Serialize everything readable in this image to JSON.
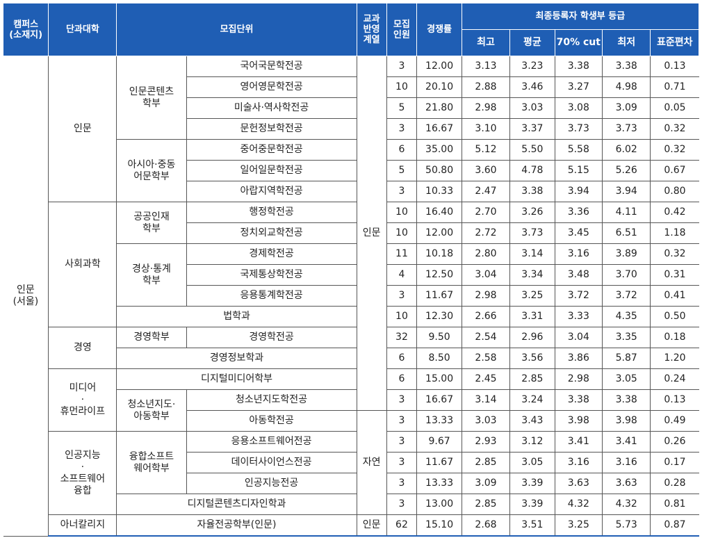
{
  "headers": {
    "campus": "캠퍼스\n(소재지)",
    "college": "단과대학",
    "unit": "모집단위",
    "track": "교과\n반영\n계열",
    "quota": "모집\n인원",
    "competition": "경쟁률",
    "grades": "최종등록자 학생부 등급",
    "best": "최고",
    "avg": "평균",
    "cut70": "70% cut",
    "worst": "최저",
    "sd": "표준편차"
  },
  "campus_label": "인문\n(서울)",
  "colleges": {
    "humanities": "인문",
    "social": "사회과학",
    "business": "경영",
    "media": "미디어\n·\n휴먼라이프",
    "ai": "인공지능\n·\n소프트웨어\n융합",
    "honors": "아너칼리지"
  },
  "divisions": {
    "hc": "인문콘텐츠\n학부",
    "asia": "아시아·중동\n어문학부",
    "public": "공공인재\n학부",
    "econ": "경상·통계\n학부",
    "bizdiv": "경영학부",
    "youth": "청소년지도·\n아동학부",
    "sw": "융합소프트\n웨어학부"
  },
  "tracks": {
    "humanities": "인문",
    "science": "자연",
    "honors": "인문"
  },
  "rows": [
    {
      "unit": "국어국문학전공",
      "quota": "3",
      "comp": "12.00",
      "best": "3.13",
      "avg": "3.23",
      "cut": "3.38",
      "worst": "3.38",
      "sd": "0.13"
    },
    {
      "unit": "영어영문학전공",
      "quota": "10",
      "comp": "20.10",
      "best": "2.88",
      "avg": "3.46",
      "cut": "3.27",
      "worst": "4.98",
      "sd": "0.71"
    },
    {
      "unit": "미술사·역사학전공",
      "quota": "5",
      "comp": "21.80",
      "best": "2.98",
      "avg": "3.03",
      "cut": "3.08",
      "worst": "3.09",
      "sd": "0.05"
    },
    {
      "unit": "문헌정보학전공",
      "quota": "3",
      "comp": "16.67",
      "best": "3.10",
      "avg": "3.37",
      "cut": "3.73",
      "worst": "3.73",
      "sd": "0.32"
    },
    {
      "unit": "중어중문학전공",
      "quota": "6",
      "comp": "35.00",
      "best": "5.12",
      "avg": "5.50",
      "cut": "5.58",
      "worst": "6.02",
      "sd": "0.32"
    },
    {
      "unit": "일어일문학전공",
      "quota": "5",
      "comp": "50.80",
      "best": "3.60",
      "avg": "4.78",
      "cut": "5.15",
      "worst": "5.26",
      "sd": "0.67"
    },
    {
      "unit": "아랍지역학전공",
      "quota": "3",
      "comp": "10.33",
      "best": "2.47",
      "avg": "3.38",
      "cut": "3.94",
      "worst": "3.94",
      "sd": "0.80"
    },
    {
      "unit": "행정학전공",
      "quota": "10",
      "comp": "16.40",
      "best": "2.70",
      "avg": "3.26",
      "cut": "3.36",
      "worst": "4.11",
      "sd": "0.42"
    },
    {
      "unit": "정치외교학전공",
      "quota": "10",
      "comp": "12.00",
      "best": "2.72",
      "avg": "3.73",
      "cut": "3.45",
      "worst": "6.51",
      "sd": "1.18"
    },
    {
      "unit": "경제학전공",
      "quota": "11",
      "comp": "10.18",
      "best": "2.80",
      "avg": "3.14",
      "cut": "3.16",
      "worst": "3.89",
      "sd": "0.32"
    },
    {
      "unit": "국제통상학전공",
      "quota": "4",
      "comp": "12.50",
      "best": "3.04",
      "avg": "3.34",
      "cut": "3.48",
      "worst": "3.70",
      "sd": "0.31"
    },
    {
      "unit": "응용통계학전공",
      "quota": "3",
      "comp": "11.67",
      "best": "2.98",
      "avg": "3.25",
      "cut": "3.72",
      "worst": "3.72",
      "sd": "0.41"
    },
    {
      "unit": "법학과",
      "quota": "10",
      "comp": "12.30",
      "best": "2.66",
      "avg": "3.31",
      "cut": "3.33",
      "worst": "4.35",
      "sd": "0.50"
    },
    {
      "unit": "경영학전공",
      "quota": "32",
      "comp": "9.50",
      "best": "2.54",
      "avg": "2.96",
      "cut": "3.04",
      "worst": "3.35",
      "sd": "0.18"
    },
    {
      "unit": "경영정보학과",
      "quota": "6",
      "comp": "8.50",
      "best": "2.58",
      "avg": "3.56",
      "cut": "3.86",
      "worst": "5.87",
      "sd": "1.20"
    },
    {
      "unit": "디지털미디어학부",
      "quota": "6",
      "comp": "15.00",
      "best": "2.45",
      "avg": "2.85",
      "cut": "2.98",
      "worst": "3.05",
      "sd": "0.24"
    },
    {
      "unit": "청소년지도학전공",
      "quota": "3",
      "comp": "16.67",
      "best": "3.14",
      "avg": "3.24",
      "cut": "3.38",
      "worst": "3.38",
      "sd": "0.13"
    },
    {
      "unit": "아동학전공",
      "quota": "3",
      "comp": "13.33",
      "best": "3.03",
      "avg": "3.43",
      "cut": "3.98",
      "worst": "3.98",
      "sd": "0.49"
    },
    {
      "unit": "응용소프트웨어전공",
      "quota": "3",
      "comp": "9.67",
      "best": "2.93",
      "avg": "3.12",
      "cut": "3.41",
      "worst": "3.41",
      "sd": "0.26"
    },
    {
      "unit": "데이터사이언스전공",
      "quota": "3",
      "comp": "11.67",
      "best": "2.85",
      "avg": "3.05",
      "cut": "3.16",
      "worst": "3.16",
      "sd": "0.17"
    },
    {
      "unit": "인공지능전공",
      "quota": "3",
      "comp": "13.33",
      "best": "3.09",
      "avg": "3.39",
      "cut": "3.63",
      "worst": "3.63",
      "sd": "0.28"
    },
    {
      "unit": "디지털콘텐츠디자인학과",
      "quota": "3",
      "comp": "13.00",
      "best": "2.85",
      "avg": "3.39",
      "cut": "4.32",
      "worst": "4.32",
      "sd": "0.81"
    },
    {
      "unit": "자율전공학부(인문)",
      "quota": "62",
      "comp": "15.10",
      "best": "2.68",
      "avg": "3.51",
      "cut": "3.25",
      "worst": "5.73",
      "sd": "0.87"
    }
  ],
  "colors": {
    "header_bg": "#1f5eb4",
    "header_text": "#ffffff",
    "grid": "#555555"
  }
}
